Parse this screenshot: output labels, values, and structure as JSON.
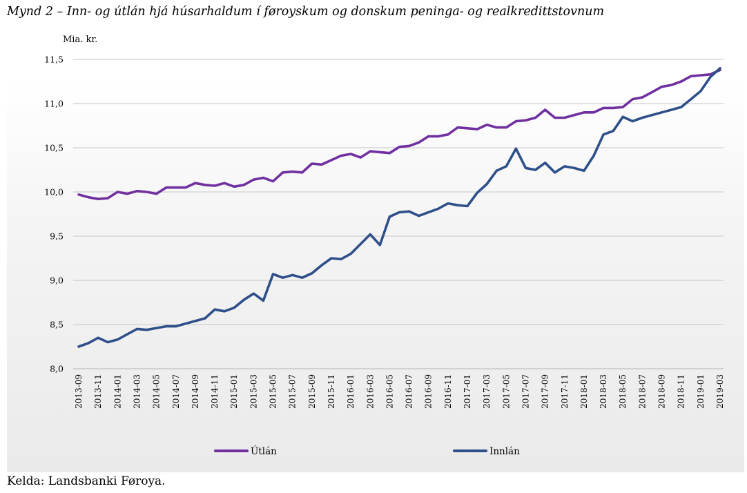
{
  "title": "Mynd 2 – Inn- og útlán hjá húsarhaldum í føroyskum og donskum peninga- og realkredittstovnum",
  "source": "Kelda: Landsbanki Føroya.",
  "chart_data": {
    "type": "line",
    "title": "Mynd 2 – Inn- og útlán hjá húsarhaldum í føroyskum og donskum peninga- og realkredittstovnum",
    "ylabel": "Mia. kr.",
    "xlabel": "",
    "ylim": [
      8.0,
      11.5
    ],
    "yticks": [
      "8,0",
      "8,5",
      "9,0",
      "9,5",
      "10,0",
      "10,5",
      "11,0",
      "11,5"
    ],
    "ytick_values": [
      8.0,
      8.5,
      9.0,
      9.5,
      10.0,
      10.5,
      11.0,
      11.5
    ],
    "grid": "horizontal",
    "legend": "bottom",
    "x": [
      "2013-09",
      "2013-10",
      "2013-11",
      "2013-12",
      "2014-01",
      "2014-02",
      "2014-03",
      "2014-04",
      "2014-05",
      "2014-06",
      "2014-07",
      "2014-08",
      "2014-09",
      "2014-10",
      "2014-11",
      "2014-12",
      "2015-01",
      "2015-02",
      "2015-03",
      "2015-04",
      "2015-05",
      "2015-06",
      "2015-07",
      "2015-08",
      "2015-09",
      "2015-10",
      "2015-11",
      "2015-12",
      "2016-01",
      "2016-02",
      "2016-03",
      "2016-04",
      "2016-05",
      "2016-06",
      "2016-07",
      "2016-08",
      "2016-09",
      "2016-10",
      "2016-11",
      "2016-12",
      "2017-01",
      "2017-02",
      "2017-03",
      "2017-04",
      "2017-05",
      "2017-06",
      "2017-07",
      "2017-08",
      "2017-09",
      "2017-10",
      "2017-11",
      "2017-12",
      "2018-01",
      "2018-02",
      "2018-03",
      "2018-04",
      "2018-05",
      "2018-06",
      "2018-07",
      "2018-08",
      "2018-09",
      "2018-10",
      "2018-11",
      "2018-12",
      "2019-01",
      "2019-02",
      "2019-03"
    ],
    "xtick_labels": [
      "2013-09",
      "2013-11",
      "2014-01",
      "2014-03",
      "2014-05",
      "2014-07",
      "2014-09",
      "2014-11",
      "2015-01",
      "2015-03",
      "2015-05",
      "2015-07",
      "2015-09",
      "2015-11",
      "2016-01",
      "2016-03",
      "2016-05",
      "2016-07",
      "2016-09",
      "2016-11",
      "2017-01",
      "2017-03",
      "2017-05",
      "2017-07",
      "2017-09",
      "2017-11",
      "2018-01",
      "2018-03",
      "2018-05",
      "2018-07",
      "2018-09",
      "2018-11",
      "2019-01",
      "2019-03"
    ],
    "series": [
      {
        "name": "Útlán",
        "color": "#7030a0",
        "values": [
          9.97,
          9.94,
          9.92,
          9.93,
          10.0,
          9.98,
          10.01,
          10.0,
          9.98,
          10.05,
          10.05,
          10.05,
          10.1,
          10.08,
          10.07,
          10.1,
          10.06,
          10.08,
          10.14,
          10.16,
          10.12,
          10.22,
          10.23,
          10.22,
          10.32,
          10.31,
          10.36,
          10.41,
          10.43,
          10.39,
          10.46,
          10.45,
          10.44,
          10.51,
          10.52,
          10.56,
          10.63,
          10.63,
          10.65,
          10.73,
          10.72,
          10.71,
          10.76,
          10.73,
          10.73,
          10.8,
          10.81,
          10.84,
          10.93,
          10.84,
          10.84,
          10.87,
          10.9,
          10.9,
          10.95,
          10.95,
          10.96,
          11.05,
          11.07,
          11.13,
          11.19,
          11.21,
          11.25,
          11.31,
          11.32,
          11.33,
          11.38
        ]
      },
      {
        "name": "Innlán",
        "color": "#2e4f8a",
        "values": [
          8.25,
          8.29,
          8.35,
          8.3,
          8.33,
          8.39,
          8.45,
          8.44,
          8.46,
          8.48,
          8.48,
          8.51,
          8.54,
          8.57,
          8.67,
          8.65,
          8.69,
          8.78,
          8.85,
          8.77,
          9.07,
          9.03,
          9.06,
          9.03,
          9.08,
          9.17,
          9.25,
          9.24,
          9.3,
          9.41,
          9.52,
          9.4,
          9.72,
          9.77,
          9.78,
          9.73,
          9.77,
          9.81,
          9.87,
          9.85,
          9.84,
          9.99,
          10.09,
          10.24,
          10.29,
          10.49,
          10.27,
          10.25,
          10.33,
          10.22,
          10.29,
          10.27,
          10.24,
          10.41,
          10.65,
          10.69,
          10.85,
          10.8,
          10.84,
          10.87,
          10.9,
          10.93,
          10.96,
          11.05,
          11.14,
          11.3,
          11.4
        ]
      }
    ]
  }
}
